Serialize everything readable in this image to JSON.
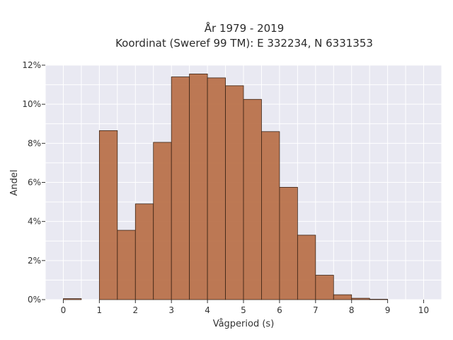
{
  "chart_data": {
    "type": "bar",
    "title_line1": "År 1979 - 2019",
    "title_line2": "Koordinat (Sweref 99 TM): E 332234, N 6331353",
    "xlabel": "Vågperiod (s)",
    "ylabel": "Andel",
    "xlim": [
      -0.5,
      10.5
    ],
    "ylim": [
      0,
      12
    ],
    "x_ticks": [
      0,
      1,
      2,
      3,
      4,
      5,
      6,
      7,
      8,
      9,
      10
    ],
    "x_tick_labels": [
      "0",
      "1",
      "2",
      "3",
      "4",
      "5",
      "6",
      "7",
      "8",
      "9",
      "10"
    ],
    "y_ticks": [
      0,
      2,
      4,
      6,
      8,
      10,
      12
    ],
    "y_tick_labels": [
      "0%",
      "2%",
      "4%",
      "6%",
      "8%",
      "10%",
      "12%"
    ],
    "bin_width": 0.5,
    "bins": [
      {
        "x0": 0.0,
        "value": 0.05
      },
      {
        "x0": 1.0,
        "value": 8.65
      },
      {
        "x0": 1.5,
        "value": 3.55
      },
      {
        "x0": 2.0,
        "value": 4.9
      },
      {
        "x0": 2.5,
        "value": 8.05
      },
      {
        "x0": 3.0,
        "value": 11.4
      },
      {
        "x0": 3.5,
        "value": 11.55
      },
      {
        "x0": 4.0,
        "value": 11.35
      },
      {
        "x0": 4.5,
        "value": 10.95
      },
      {
        "x0": 5.0,
        "value": 10.25
      },
      {
        "x0": 5.5,
        "value": 8.6
      },
      {
        "x0": 6.0,
        "value": 5.75
      },
      {
        "x0": 6.5,
        "value": 3.3
      },
      {
        "x0": 7.0,
        "value": 1.25
      },
      {
        "x0": 7.5,
        "value": 0.25
      },
      {
        "x0": 8.0,
        "value": 0.07
      },
      {
        "x0": 8.5,
        "value": 0.02
      }
    ],
    "grid": true,
    "colors": {
      "bar": "#b5683e",
      "edge": "#3b2416",
      "plot_bg": "#e9e9f2",
      "grid": "#ffffff"
    }
  }
}
